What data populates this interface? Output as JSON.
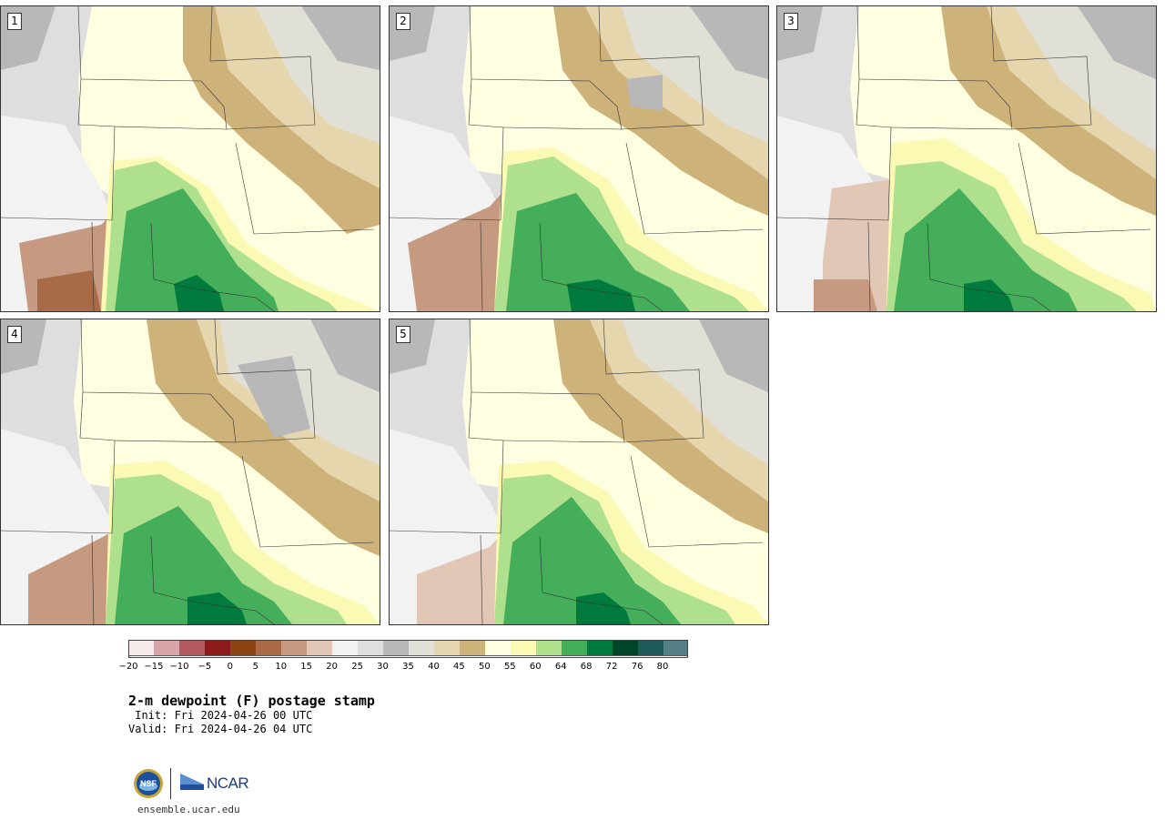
{
  "panels": [
    {
      "label": "1"
    },
    {
      "label": "2"
    },
    {
      "label": "3"
    },
    {
      "label": "4"
    },
    {
      "label": "5"
    }
  ],
  "colorbar": {
    "colors": [
      "#f6eaea",
      "#d9a4a8",
      "#b05a60",
      "#8b1a1a",
      "#8a4513",
      "#a86b45",
      "#c69a80",
      "#e2c7b6",
      "#f2f2f2",
      "#dedede",
      "#b8b8b8",
      "#e0e0d6",
      "#e6d6ad",
      "#cdb27a",
      "#fffee0",
      "#fafab4",
      "#aee08e",
      "#44ae5b",
      "#007a3d",
      "#00452a",
      "#1e5a5a",
      "#547f86"
    ],
    "tick_labels": [
      "−20",
      "−15",
      "−10",
      "−5",
      "0",
      "5",
      "10",
      "15",
      "20",
      "25",
      "30",
      "35",
      "40",
      "45",
      "50",
      "55",
      "60",
      "64",
      "68",
      "72",
      "76",
      "80"
    ]
  },
  "title": "2-m dewpoint (F) postage stamp",
  "init_line": " Init: Fri 2024-04-26 00 UTC",
  "valid_line": "Valid: Fri 2024-04-26 04 UTC",
  "logos": {
    "nsf": "NSF",
    "ncar": "NCAR"
  },
  "site": "ensemble.ucar.edu"
}
